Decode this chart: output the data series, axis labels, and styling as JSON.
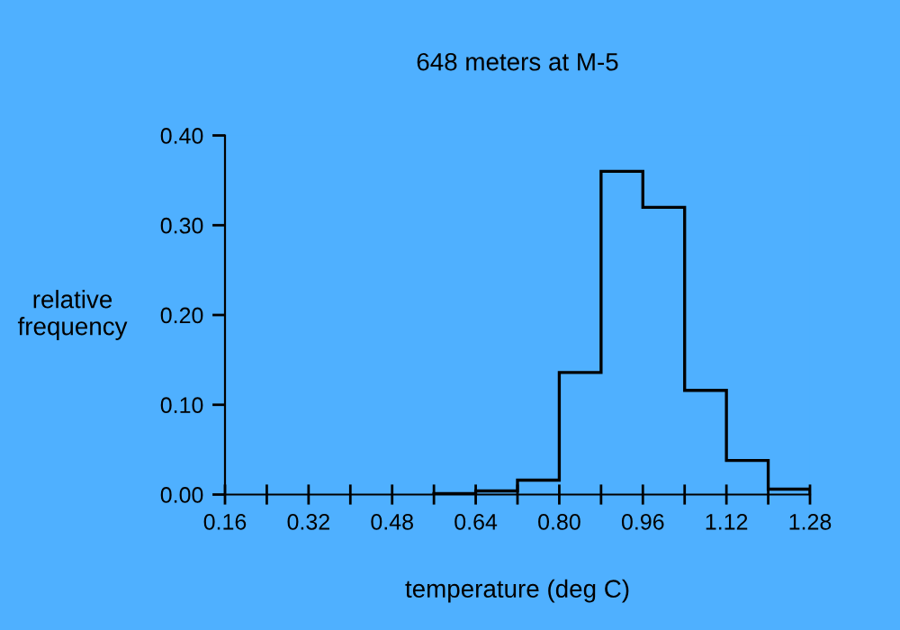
{
  "chart_data": {
    "type": "histogram",
    "title": "648 meters at M-5",
    "xlabel": "temperature (deg C)",
    "ylabel": "relative\nfrequency",
    "bins": [
      0.56,
      0.64,
      0.72,
      0.8,
      0.88,
      0.96,
      1.04,
      1.12,
      1.2,
      1.28
    ],
    "values": [
      0.001,
      0.004,
      0.016,
      0.136,
      0.36,
      0.32,
      0.116,
      0.038,
      0.006
    ],
    "color": "#000000",
    "xlim": [
      0.16,
      1.28
    ],
    "xticks": [
      {
        "value": 0.16,
        "label": "0.16"
      },
      {
        "value": 0.24,
        "label": null
      },
      {
        "value": 0.32,
        "label": "0.32"
      },
      {
        "value": 0.4,
        "label": null
      },
      {
        "value": 0.48,
        "label": "0.48"
      },
      {
        "value": 0.56,
        "label": null
      },
      {
        "value": 0.64,
        "label": "0.64"
      },
      {
        "value": 0.72,
        "label": null
      },
      {
        "value": 0.8,
        "label": "0.80"
      },
      {
        "value": 0.88,
        "label": null
      },
      {
        "value": 0.96,
        "label": "0.96"
      },
      {
        "value": 1.04,
        "label": null
      },
      {
        "value": 1.12,
        "label": "1.12"
      },
      {
        "value": 1.2,
        "label": null
      },
      {
        "value": 1.28,
        "label": "1.28"
      }
    ],
    "ylim": [
      0,
      0.4
    ],
    "yticks": [
      {
        "value": 0,
        "label": "0.00"
      },
      {
        "value": 0.1,
        "label": "0.10"
      },
      {
        "value": 0.2,
        "label": "0.20"
      },
      {
        "value": 0.3,
        "label": "0.30"
      },
      {
        "value": 0.4,
        "label": "0.40"
      }
    ],
    "grid": false,
    "legend": false
  }
}
